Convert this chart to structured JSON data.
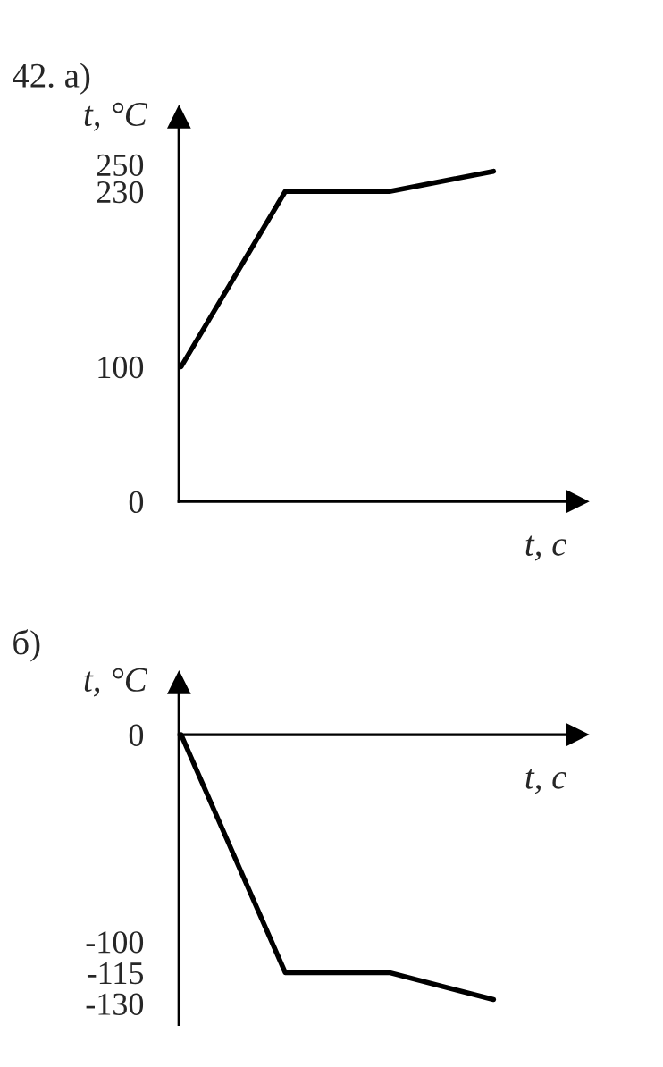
{
  "chart_data": [
    {
      "type": "line",
      "title": "42. а)",
      "ylabel": "t, °C",
      "xlabel": "t, с",
      "categories": [
        null,
        null,
        null,
        null
      ],
      "values": [
        100,
        230,
        230,
        245
      ],
      "color": "#000000",
      "ylim": [
        0,
        285
      ],
      "yticks": [
        0,
        100,
        230,
        250
      ],
      "tick_labels": "y"
    },
    {
      "type": "line",
      "title": "б)",
      "ylabel": "t, °C",
      "xlabel": "t, с",
      "categories": [
        null,
        null,
        null,
        null
      ],
      "values": [
        0,
        -115,
        -115,
        -128
      ],
      "color": "#000000",
      "ylim": [
        -140,
        25
      ],
      "yticks": [
        0,
        -100,
        -115,
        -130
      ],
      "tick_labels": "y"
    }
  ]
}
